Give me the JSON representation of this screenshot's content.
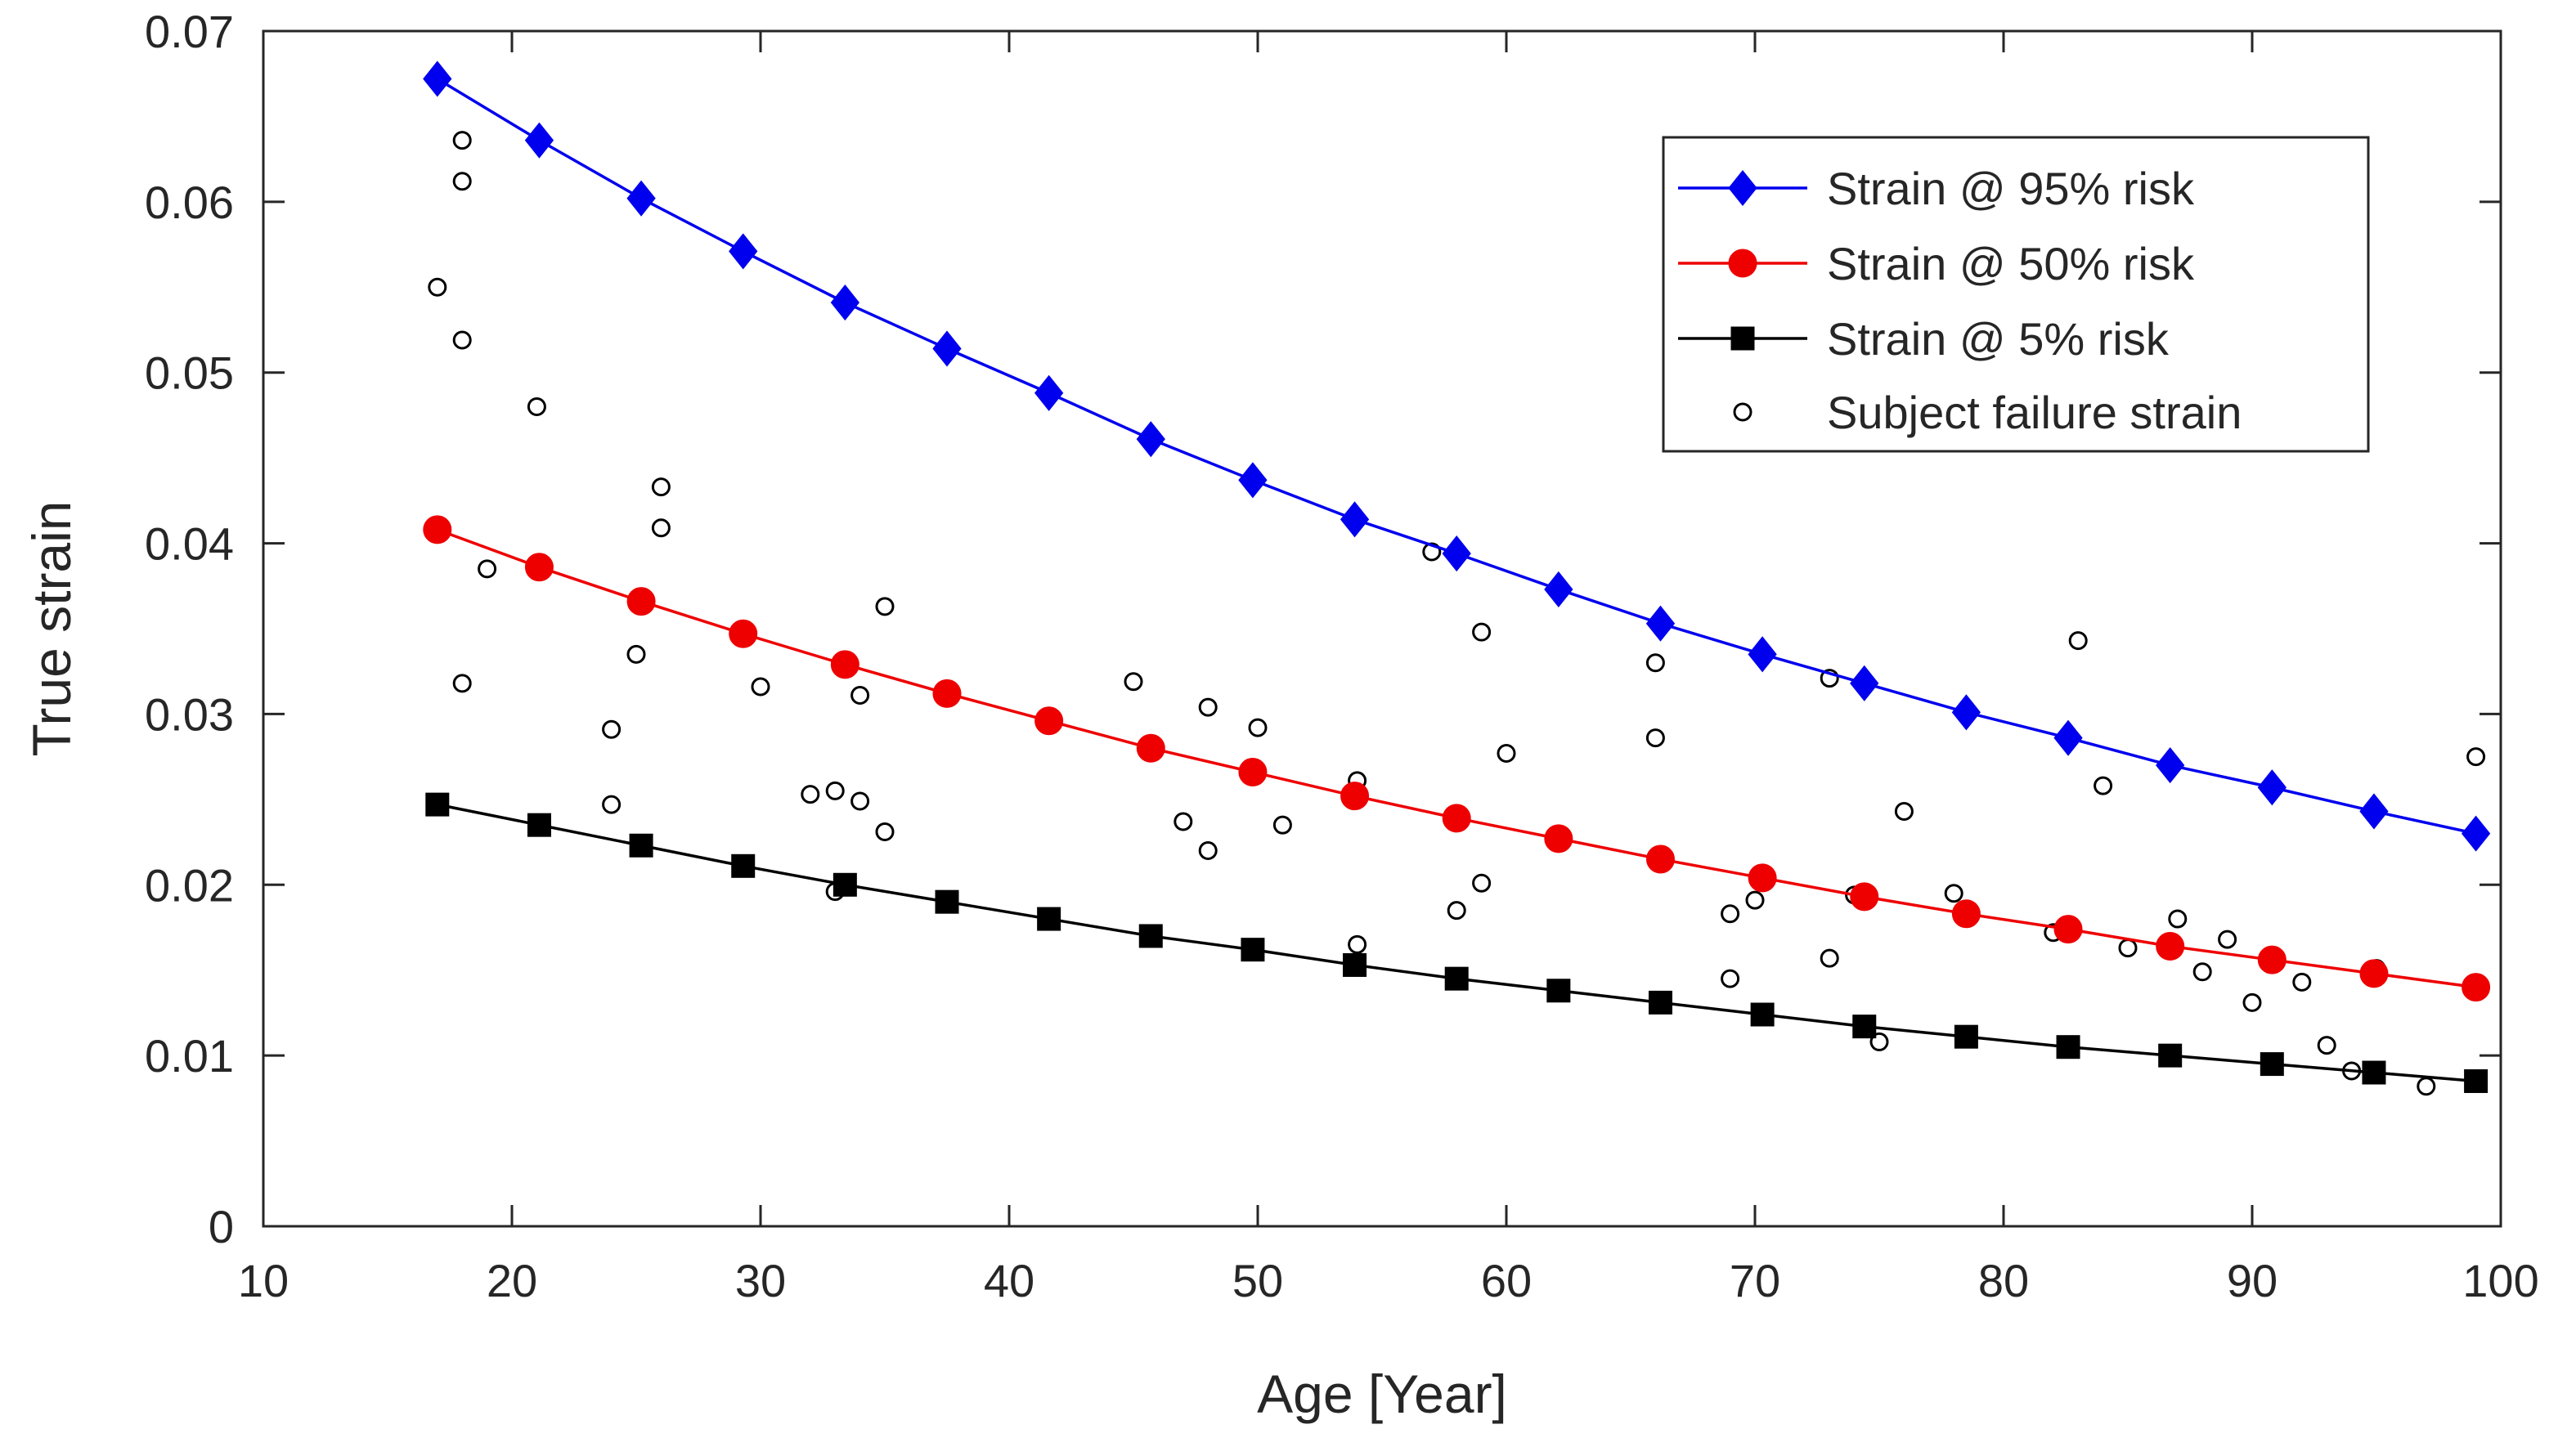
{
  "chart_data": {
    "type": "scatter",
    "xlabel": "Age [Year]",
    "ylabel": "True strain",
    "xlim": [
      10,
      100
    ],
    "ylim": [
      0,
      0.07
    ],
    "xticks": [
      "10",
      "20",
      "30",
      "40",
      "50",
      "60",
      "70",
      "80",
      "90",
      "100"
    ],
    "yticks": [
      "0",
      "0.01",
      "0.02",
      "0.03",
      "0.04",
      "0.05",
      "0.06",
      "0.07"
    ],
    "legend_position": "top-right",
    "curve_x": [
      17,
      21.1,
      25.2,
      29.3,
      33.4,
      37.5,
      41.6,
      45.7,
      49.8,
      53.9,
      58,
      62.1,
      66.2,
      70.3,
      74.4,
      78.5,
      82.6,
      86.7,
      90.8,
      94.9,
      99
    ],
    "series": [
      {
        "name": "Strain @ 95% risk",
        "color": "#0000ee",
        "marker": "diamond",
        "values": [
          0.0672,
          0.0636,
          0.0602,
          0.0571,
          0.0541,
          0.0514,
          0.0488,
          0.0461,
          0.0437,
          0.0414,
          0.0394,
          0.0373,
          0.0353,
          0.0335,
          0.0318,
          0.0301,
          0.0286,
          0.027,
          0.0257,
          0.0243,
          0.023
        ]
      },
      {
        "name": "Strain @ 50% risk",
        "color": "#ee0000",
        "marker": "circle",
        "values": [
          0.0408,
          0.0386,
          0.0366,
          0.0347,
          0.0329,
          0.0312,
          0.0296,
          0.028,
          0.0266,
          0.0252,
          0.0239,
          0.0227,
          0.0215,
          0.0204,
          0.0193,
          0.0183,
          0.0174,
          0.0164,
          0.0156,
          0.0148,
          0.014
        ]
      },
      {
        "name": "Strain @ 5% risk",
        "color": "#000000",
        "marker": "square",
        "values": [
          0.0247,
          0.0235,
          0.0223,
          0.0211,
          0.02,
          0.019,
          0.018,
          0.017,
          0.0162,
          0.0153,
          0.0145,
          0.0138,
          0.0131,
          0.0124,
          0.0117,
          0.0111,
          0.0105,
          0.01,
          0.0095,
          0.009,
          0.0085
        ]
      }
    ],
    "scatter": {
      "name": "Subject failure strain",
      "color": "#000000",
      "marker": "open-circle",
      "points": [
        [
          18,
          0.0636
        ],
        [
          18,
          0.0612
        ],
        [
          17,
          0.055
        ],
        [
          18,
          0.0519
        ],
        [
          21,
          0.048
        ],
        [
          26,
          0.0433
        ],
        [
          26,
          0.0409
        ],
        [
          19,
          0.0385
        ],
        [
          25,
          0.0335
        ],
        [
          18,
          0.0318
        ],
        [
          30,
          0.0316
        ],
        [
          24,
          0.0291
        ],
        [
          24,
          0.0247
        ],
        [
          32,
          0.0253
        ],
        [
          33,
          0.0255
        ],
        [
          34,
          0.0249
        ],
        [
          35,
          0.0363
        ],
        [
          34,
          0.0311
        ],
        [
          35,
          0.0231
        ],
        [
          33,
          0.0196
        ],
        [
          45,
          0.0319
        ],
        [
          48,
          0.0304
        ],
        [
          50,
          0.0292
        ],
        [
          47,
          0.0237
        ],
        [
          48,
          0.022
        ],
        [
          51,
          0.0235
        ],
        [
          54,
          0.0261
        ],
        [
          54,
          0.0165
        ],
        [
          57,
          0.0395
        ],
        [
          59,
          0.0348
        ],
        [
          60,
          0.0277
        ],
        [
          59,
          0.0201
        ],
        [
          58,
          0.0185
        ],
        [
          66,
          0.033
        ],
        [
          66,
          0.0286
        ],
        [
          69,
          0.0183
        ],
        [
          70,
          0.0191
        ],
        [
          69,
          0.0145
        ],
        [
          73,
          0.0321
        ],
        [
          74,
          0.0194
        ],
        [
          73,
          0.0157
        ],
        [
          75,
          0.0108
        ],
        [
          76,
          0.0243
        ],
        [
          78,
          0.0195
        ],
        [
          83,
          0.0343
        ],
        [
          84,
          0.0258
        ],
        [
          82,
          0.0172
        ],
        [
          85,
          0.0163
        ],
        [
          87,
          0.018
        ],
        [
          88,
          0.0149
        ],
        [
          89,
          0.0168
        ],
        [
          90,
          0.0131
        ],
        [
          92,
          0.0143
        ],
        [
          93,
          0.0106
        ],
        [
          94,
          0.0091
        ],
        [
          95,
          0.0151
        ],
        [
          97,
          0.0082
        ],
        [
          99,
          0.0275
        ]
      ]
    }
  }
}
